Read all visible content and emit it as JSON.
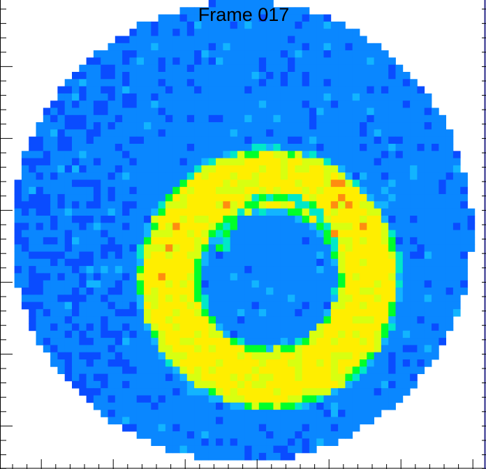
{
  "title": "Frame 017",
  "colors": {
    "background": "#ffffff",
    "deep_blue": "#0a4cff",
    "blue": "#0a87ff",
    "cyan": "#12b4ff",
    "teal": "#00e8c8",
    "green": "#00ff2a",
    "yellow_green": "#d8ff10",
    "yellow": "#ffee00",
    "orange": "#ff8c10",
    "axis": "#000000",
    "right_edge": "#2a2a8a"
  },
  "icons": [
    "heatmap-image"
  ]
}
